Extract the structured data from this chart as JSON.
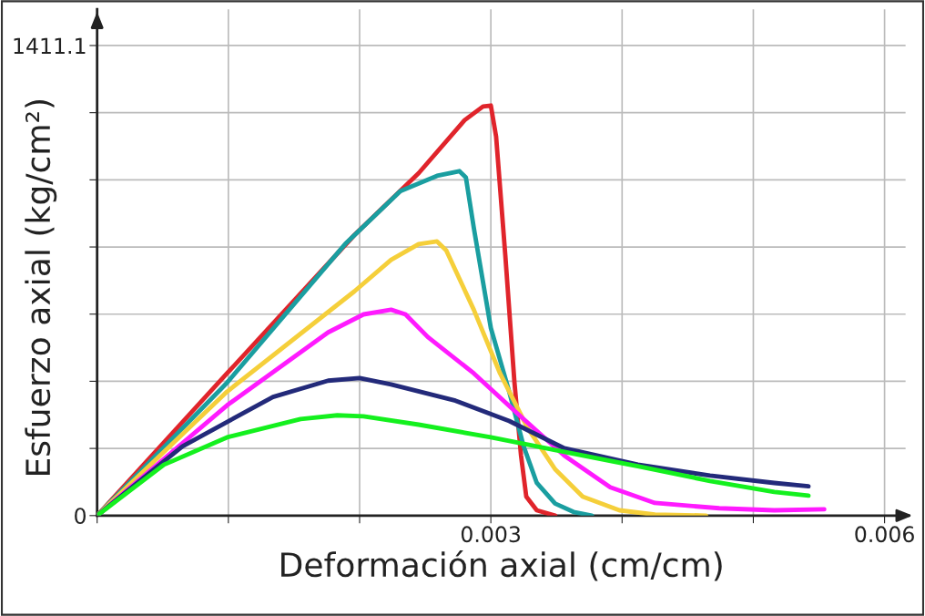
{
  "chart_data": {
    "type": "line",
    "xlabel": "Deformación axial (cm/cm)",
    "ylabel": "Esfuerzo axial (kg/cm²)",
    "xlim": [
      0,
      0.00616
    ],
    "ylim": [
      0,
      1520
    ],
    "xticks": [
      {
        "value": 0,
        "label": null
      },
      {
        "value": 0.001,
        "label": null
      },
      {
        "value": 0.002,
        "label": null
      },
      {
        "value": 0.003,
        "label": "0.003"
      },
      {
        "value": 0.004,
        "label": null
      },
      {
        "value": 0.005,
        "label": null
      },
      {
        "value": 0.006,
        "label": "0.006"
      }
    ],
    "yticks": [
      0,
      {
        "value": 201.6,
        "label": null
      },
      {
        "value": 403.2,
        "label": null
      },
      {
        "value": 604.8,
        "label": null
      },
      {
        "value": 806.3,
        "label": null
      },
      {
        "value": 1007.9,
        "label": null
      },
      {
        "value": 1209.5,
        "label": null
      },
      {
        "value": 1411.1,
        "label": "1411.1"
      }
    ],
    "grid": true,
    "legend": false,
    "marker": "none",
    "line_style": "solid",
    "series": [
      {
        "color": "#e0242b",
        "x": [
          0,
          0.00099,
          0.00196,
          0.00245,
          0.0028,
          0.00294,
          0.003,
          0.00304,
          0.00311,
          0.00318,
          0.00323,
          0.00327,
          0.00335,
          0.00349
        ],
        "values": [
          0,
          427,
          842,
          1028,
          1187,
          1228,
          1231,
          1138,
          782,
          399,
          180,
          57,
          16,
          0
        ]
      },
      {
        "color": "#1a9ea0",
        "x": [
          0,
          0.00099,
          0.00189,
          0.00231,
          0.00259,
          0.00276,
          0.00281,
          0.00287,
          0.003,
          0.00314,
          0.00325,
          0.00335,
          0.00349,
          0.00363,
          0.00377
        ],
        "values": [
          0,
          399,
          815,
          974,
          1020,
          1034,
          1015,
          864,
          563,
          372,
          208,
          98,
          36,
          11,
          0
        ]
      },
      {
        "color": "#f5cf3a",
        "x": [
          0,
          0.00099,
          0.00196,
          0.00224,
          0.00245,
          0.00259,
          0.00266,
          0.00287,
          0.00307,
          0.00328,
          0.00349,
          0.0037,
          0.00398,
          0.00425,
          0.00464
        ],
        "values": [
          0,
          372,
          673,
          768,
          815,
          823,
          796,
          618,
          427,
          263,
          139,
          57,
          16,
          3,
          0
        ]
      },
      {
        "color": "#ff1aff",
        "x": [
          0,
          0.00099,
          0.00176,
          0.00203,
          0.00224,
          0.00235,
          0.00252,
          0.00287,
          0.00321,
          0.00356,
          0.00391,
          0.00425,
          0.00474,
          0.00516,
          0.00554
        ],
        "values": [
          0,
          331,
          550,
          604,
          618,
          604,
          536,
          427,
          304,
          180,
          85,
          38,
          22,
          16,
          19
        ]
      },
      {
        "color": "#232a7a",
        "x": [
          0,
          0.00065,
          0.00134,
          0.00176,
          0.002,
          0.00224,
          0.00273,
          0.00314,
          0.00356,
          0.00412,
          0.00467,
          0.00516,
          0.00542
        ],
        "values": [
          0,
          208,
          356,
          405,
          413,
          394,
          345,
          284,
          202,
          153,
          120,
          98,
          88
        ]
      },
      {
        "color": "#14f01e",
        "x": [
          0,
          0.00051,
          0.00099,
          0.00155,
          0.00183,
          0.00203,
          0.00245,
          0.003,
          0.00356,
          0.00412,
          0.00467,
          0.00516,
          0.00542
        ],
        "values": [
          0,
          153,
          235,
          290,
          301,
          298,
          273,
          235,
          191,
          148,
          104,
          71,
          60
        ]
      }
    ]
  }
}
